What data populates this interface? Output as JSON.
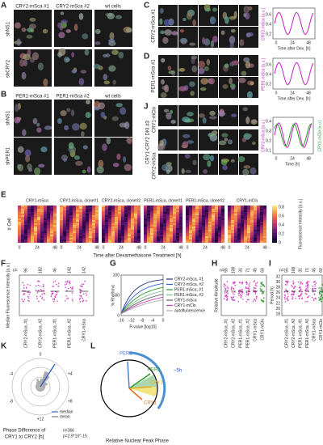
{
  "panel_a": {
    "label": "A",
    "columns": [
      "CRY2-mSca #1",
      "CRY2-mSca #2",
      "wt cells"
    ],
    "rows": [
      "shNS1",
      "shCRY2"
    ]
  },
  "panel_b": {
    "label": "B",
    "columns": [
      "PER1-mSca #1",
      "PER1-mSca #2",
      "wt cells"
    ],
    "rows": [
      "shNS1",
      "shPER1"
    ]
  },
  "panel_c": {
    "label": "C",
    "row_label": "CRY2-mSca #1",
    "y_label": "CRY2-mSca [a.u.]",
    "x_label": "Time after Dex. [h]",
    "xticks": [
      "0",
      "24",
      "48"
    ],
    "yticks": [
      "0.2",
      "0.4",
      "0.6"
    ]
  },
  "panel_d": {
    "label": "D",
    "row_label": "PER1-mSca #1",
    "y_label": "PER1-mSca [a.u.]",
    "x_label": "Time after Dex. [h]",
    "xticks": [
      "0",
      "24",
      "48"
    ],
    "yticks": [
      "0.2",
      "0.4",
      "0.6"
    ]
  },
  "panel_j": {
    "label": "J",
    "group_label": "CRY1-CRY2 DKI #3",
    "row_labels": [
      "CRY1-mClo",
      "CRY2-mSca"
    ],
    "y_label": "CRY2-mSca [a.u.]",
    "y2_label": "CRY1-mClo [a.u.]",
    "x_label": "Time [h]",
    "xticks": [
      "0",
      "24",
      "48"
    ],
    "yticks": [
      "0.1",
      "0.2",
      "0.3",
      "0.4"
    ]
  },
  "panel_e": {
    "label": "E",
    "columns": [
      "CRY1-mSca",
      "CRY2-mSca, clone#1",
      "CRY2-mSca, clone#2",
      "PER1-mSca, clone#1",
      "PER1-mSca, clone#2",
      "CRY1-mClo"
    ],
    "y_label": "# Cell",
    "xticks": [
      "0",
      "24",
      "48"
    ],
    "x_label": "Time after Dexamethasone Treatment [h]",
    "colorbar_ticks": [
      "0",
      "0.2",
      "0.4",
      "0.6",
      "0.8"
    ],
    "colorbar_label": "Fluorescence Intensity [a.u.]"
  },
  "panel_f": {
    "label": "F",
    "y_label": "Median Fluorescence Intensity [a.u.]",
    "n_label": "n=",
    "n": [
      "96",
      "182",
      "46",
      "142",
      "142"
    ],
    "categories": [
      "CRY2-mSca, #1",
      "CRY2-mSca, #2",
      "PER1-mSca, #1",
      "PER1-mSca, #2",
      "CRY1-mSca"
    ]
  },
  "panel_g": {
    "label": "G",
    "y_label": "% Rhythmic",
    "x_label": "P-value [log10]",
    "xticks": [
      "-16",
      "-12",
      "-8",
      "-4",
      "0"
    ],
    "yticks": [
      "0",
      "50",
      "100"
    ],
    "legend": [
      "CRY2-mSca, #1",
      "CRY2-mSca, #2",
      "PER1-mSca, #1",
      "PER1-mSca, #2",
      "CRY1-mSca",
      "CRY1-mClo",
      "autofluorescence"
    ]
  },
  "panel_h": {
    "label": "H",
    "y_label": "Relative Amplitude",
    "n_label": "n=",
    "n": [
      "55",
      "108",
      "31",
      "71",
      "45",
      "60"
    ],
    "categories": [
      "CRY2-mSca, #1",
      "CRY2-mSca, #2",
      "PER1-mSca, #1",
      "PER1-mSca, #2",
      "CRY1-mSca",
      "CRY1-mClo"
    ]
  },
  "panel_i": {
    "label": "I",
    "y_label": "Period [h]",
    "n_label": "n=",
    "n": [
      "55",
      "108",
      "31",
      "71",
      "45",
      "60"
    ],
    "yticks": [
      "32",
      "30",
      "28",
      "26",
      "24",
      "22",
      "20",
      "18"
    ],
    "categories": [
      "CRY2-mSca, #1",
      "CRY2-mSca, #2",
      "PER1-mSca, #1",
      "PER1-mSca, #2",
      "CRY1-mSca",
      "CRY1-mClo"
    ]
  },
  "panel_k": {
    "label": "K",
    "ticks": [
      "0",
      "+4",
      "+8",
      "-4",
      "-8",
      "+12"
    ],
    "legend": [
      "median",
      "mean"
    ],
    "x_label": [
      "Phase Difference of",
      "CRY1 to CRY2 [h]"
    ],
    "stats": [
      "n=366",
      "p=2.9*10^-15"
    ]
  },
  "panel_l": {
    "label": "L",
    "labels": [
      "PER2",
      "PER1",
      "CRY2",
      "CRY1",
      "~5h"
    ],
    "x_label": "Relative Nuclear Peak Phase"
  }
}
